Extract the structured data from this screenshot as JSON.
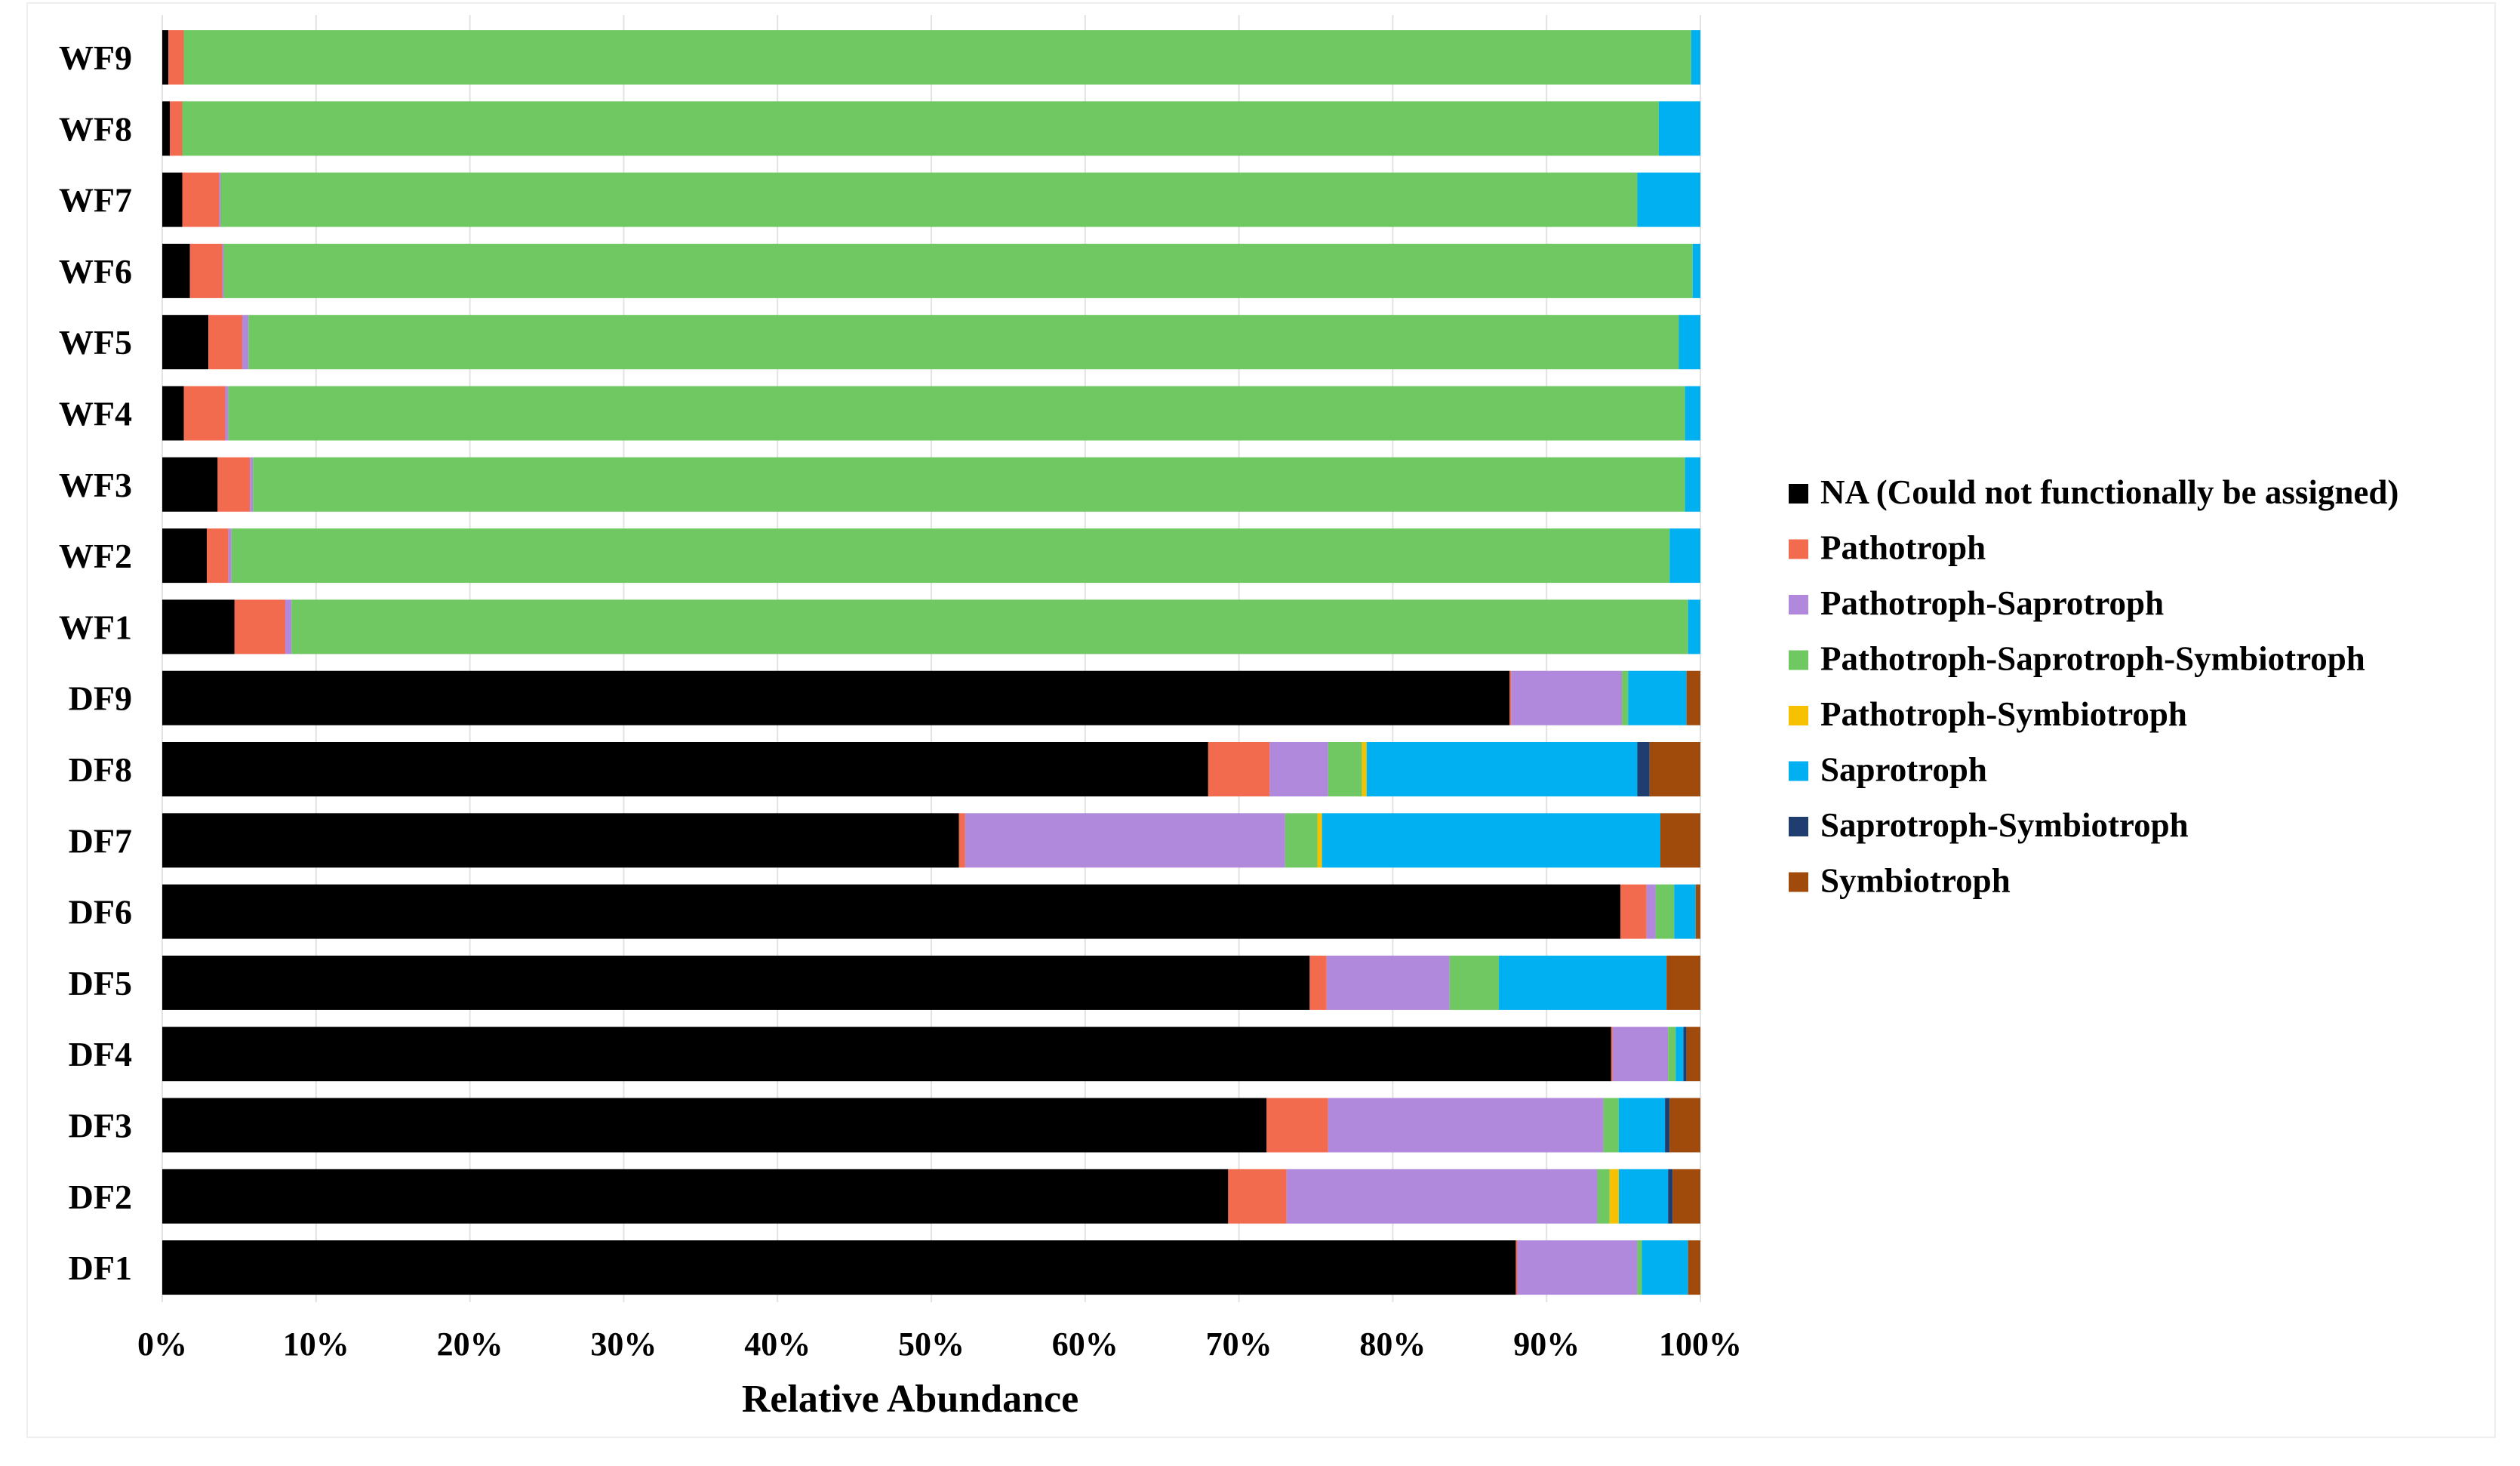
{
  "chart_data": {
    "type": "bar",
    "orientation": "horizontal",
    "stacked": "percent",
    "title": "",
    "xlabel": "Relative Abundance",
    "ylabel": "",
    "xlim": [
      0,
      100
    ],
    "x_ticks": [
      "0%",
      "10%",
      "20%",
      "30%",
      "40%",
      "50%",
      "60%",
      "70%",
      "80%",
      "90%",
      "100%"
    ],
    "grid": "vertical gridlines",
    "legend_position": "right",
    "categories": [
      "WF9",
      "WF8",
      "WF7",
      "WF6",
      "WF5",
      "WF4",
      "WF3",
      "WF2",
      "WF1",
      "DF9",
      "DF8",
      "DF7",
      "DF6",
      "DF5",
      "DF4",
      "DF3",
      "DF2",
      "DF1"
    ],
    "series": [
      {
        "name": "NA (Could not functionally be assigned)",
        "color": "#000000",
        "values": [
          0.4,
          0.5,
          1.3,
          1.8,
          3.0,
          1.4,
          3.6,
          2.9,
          4.7,
          87.6,
          68.0,
          51.8,
          94.8,
          74.6,
          94.2,
          71.8,
          69.3,
          88.0
        ]
      },
      {
        "name": "Pathotroph",
        "color": "#f26b4f",
        "values": [
          1.0,
          0.8,
          2.4,
          2.1,
          2.2,
          2.7,
          2.1,
          1.4,
          3.3,
          0.1,
          4.0,
          0.4,
          1.7,
          1.1,
          0.1,
          4.0,
          3.8,
          0.1
        ]
      },
      {
        "name": "Pathotroph-Saprotroph",
        "color": "#b088dc",
        "values": [
          0.0,
          0.0,
          0.1,
          0.1,
          0.4,
          0.2,
          0.2,
          0.2,
          0.4,
          7.2,
          3.8,
          20.8,
          0.6,
          8.0,
          3.6,
          17.9,
          20.2,
          7.8
        ]
      },
      {
        "name": "Pathotroph-Saprotroph-Symbiotroph",
        "color": "#6fc862",
        "values": [
          98.0,
          96.0,
          92.1,
          95.5,
          93.0,
          94.7,
          93.1,
          93.5,
          90.8,
          0.4,
          2.2,
          2.1,
          1.2,
          3.2,
          0.5,
          1.0,
          0.8,
          0.3
        ]
      },
      {
        "name": "Pathotroph-Symbiotroph",
        "color": "#f5c100",
        "values": [
          0.0,
          0.0,
          0.0,
          0.0,
          0.0,
          0.0,
          0.0,
          0.0,
          0.0,
          0.0,
          0.3,
          0.3,
          0.0,
          0.0,
          0.0,
          0.0,
          0.6,
          0.0
        ]
      },
      {
        "name": "Saprotroph",
        "color": "#00b0f0",
        "values": [
          0.6,
          2.7,
          4.1,
          0.5,
          1.4,
          1.0,
          1.0,
          2.0,
          0.8,
          3.8,
          17.6,
          22.0,
          1.4,
          10.9,
          0.5,
          3.0,
          3.2,
          3.0
        ]
      },
      {
        "name": "Saprotroph-Symbiotroph",
        "color": "#1f3d6e",
        "values": [
          0.0,
          0.0,
          0.0,
          0.0,
          0.0,
          0.0,
          0.0,
          0.0,
          0.0,
          0.0,
          0.8,
          0.0,
          0.0,
          0.0,
          0.2,
          0.3,
          0.3,
          0.0
        ]
      },
      {
        "name": "Symbiotroph",
        "color": "#a04a0c",
        "values": [
          0.0,
          0.0,
          0.0,
          0.0,
          0.0,
          0.0,
          0.0,
          0.0,
          0.0,
          0.9,
          3.3,
          2.6,
          0.3,
          2.2,
          0.9,
          2.0,
          1.8,
          0.8
        ]
      }
    ]
  }
}
